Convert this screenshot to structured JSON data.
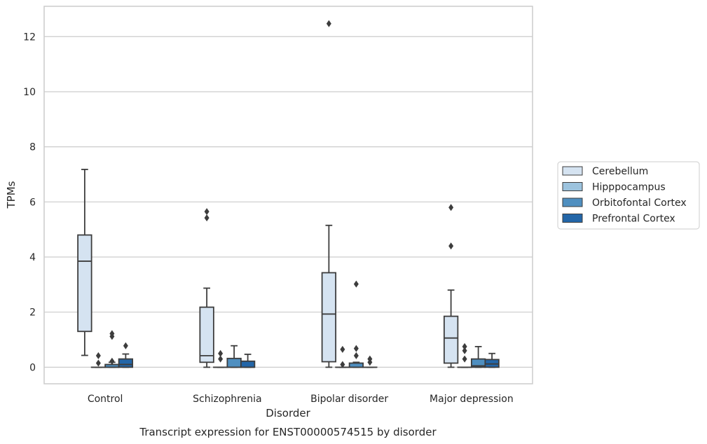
{
  "chart_data": {
    "type": "box",
    "xlabel": "Disorder",
    "ylabel": "TPMs",
    "caption": "Transcript expression for ENST00000574515 by disorder",
    "ylim": [
      -0.6,
      13.1
    ],
    "yticks": [
      0,
      2,
      4,
      6,
      8,
      10,
      12
    ],
    "grid": "horizontal",
    "legend_position": "right",
    "categories": [
      "Control",
      "Schizophrenia",
      "Bipolar disorder",
      "Major depression"
    ],
    "series": [
      {
        "name": "Cerebellum",
        "color": "#d5e3f1",
        "boxes": [
          {
            "whislo": 0.43,
            "q1": 1.3,
            "med": 3.85,
            "q3": 4.8,
            "whishi": 7.18,
            "fliers": []
          },
          {
            "whislo": 0.0,
            "q1": 0.18,
            "med": 0.42,
            "q3": 2.18,
            "whishi": 2.87,
            "fliers": [
              5.42,
              5.65
            ]
          },
          {
            "whislo": 0.0,
            "q1": 0.2,
            "med": 1.93,
            "q3": 3.43,
            "whishi": 5.15,
            "fliers": [
              12.47
            ]
          },
          {
            "whislo": 0.0,
            "q1": 0.15,
            "med": 1.06,
            "q3": 1.85,
            "whishi": 2.8,
            "fliers": [
              4.4,
              5.8
            ]
          }
        ]
      },
      {
        "name": "Hipppocampus",
        "color": "#9cc3de",
        "boxes": [
          {
            "whislo": 0.0,
            "q1": 0.0,
            "med": 0.0,
            "q3": 0.0,
            "whishi": 0.0,
            "fliers": [
              0.15,
              0.42
            ]
          },
          {
            "whislo": 0.0,
            "q1": 0.0,
            "med": 0.0,
            "q3": 0.0,
            "whishi": 0.0,
            "fliers": [
              0.3,
              0.5
            ]
          },
          {
            "whislo": 0.0,
            "q1": 0.0,
            "med": 0.0,
            "q3": 0.0,
            "whishi": 0.0,
            "fliers": [
              0.1,
              0.65
            ]
          },
          {
            "whislo": 0.0,
            "q1": 0.0,
            "med": 0.0,
            "q3": 0.0,
            "whishi": 0.0,
            "fliers": [
              0.3,
              0.6,
              0.75
            ]
          }
        ]
      },
      {
        "name": "Orbitofontal Cortex",
        "color": "#4f8fc0",
        "boxes": [
          {
            "whislo": 0.0,
            "q1": 0.0,
            "med": 0.0,
            "q3": 0.1,
            "whishi": 0.18,
            "fliers": [
              0.22,
              1.12,
              1.22
            ]
          },
          {
            "whislo": 0.0,
            "q1": 0.0,
            "med": 0.0,
            "q3": 0.32,
            "whishi": 0.78,
            "fliers": []
          },
          {
            "whislo": 0.0,
            "q1": 0.0,
            "med": 0.0,
            "q3": 0.15,
            "whishi": 0.18,
            "fliers": [
              0.42,
              0.68,
              3.02
            ]
          },
          {
            "whislo": 0.0,
            "q1": 0.0,
            "med": 0.05,
            "q3": 0.3,
            "whishi": 0.75,
            "fliers": []
          }
        ]
      },
      {
        "name": "Prefrontal Cortex",
        "color": "#2366a8",
        "boxes": [
          {
            "whislo": 0.0,
            "q1": 0.0,
            "med": 0.1,
            "q3": 0.3,
            "whishi": 0.48,
            "fliers": [
              0.78
            ]
          },
          {
            "whislo": 0.0,
            "q1": 0.0,
            "med": 0.0,
            "q3": 0.22,
            "whishi": 0.47,
            "fliers": []
          },
          {
            "whislo": 0.0,
            "q1": 0.0,
            "med": 0.0,
            "q3": 0.0,
            "whishi": 0.0,
            "fliers": [
              0.18,
              0.3
            ]
          },
          {
            "whislo": 0.0,
            "q1": 0.0,
            "med": 0.12,
            "q3": 0.28,
            "whishi": 0.5,
            "fliers": []
          }
        ]
      }
    ]
  }
}
